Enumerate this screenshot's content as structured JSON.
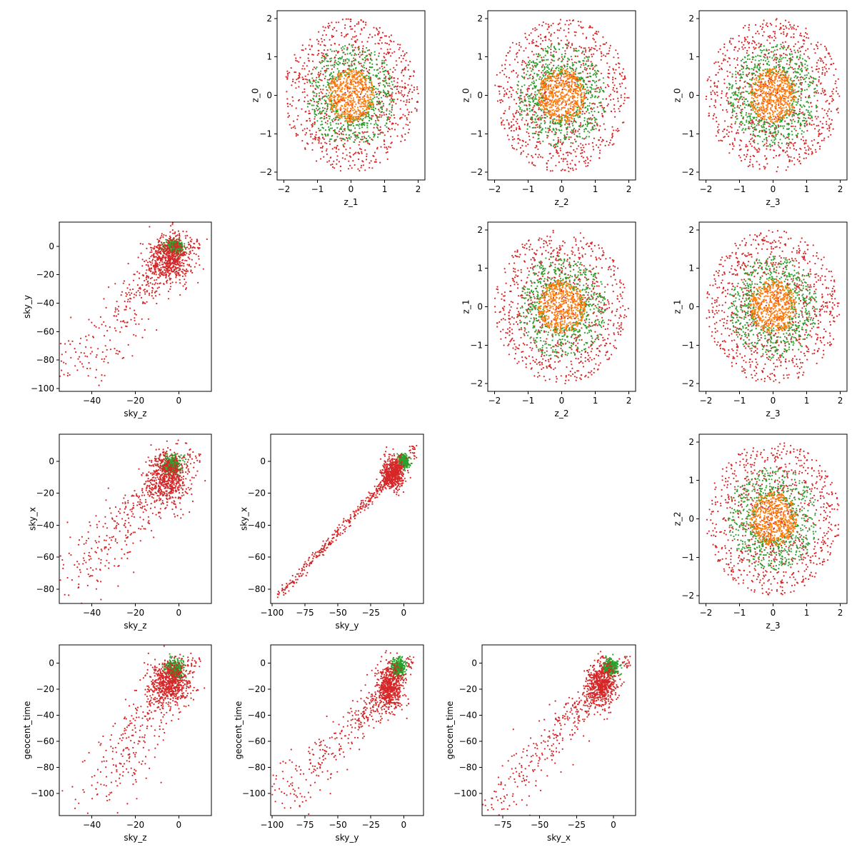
{
  "figure": {
    "type": "corner-scatter-matrix",
    "series_colors": [
      "#ff7f0e",
      "#2ca02c",
      "#d62728"
    ],
    "marker": "small dot"
  },
  "chart_data": [
    {
      "id": "z1_z0",
      "type": "scatter",
      "xlabel": "z_1",
      "ylabel": "z_0",
      "xlim": [
        -2.2,
        2.2
      ],
      "ylim": [
        -2.2,
        2.2
      ],
      "xticks": [
        -2,
        -1,
        0,
        1,
        2
      ],
      "xtick_labels": [
        "−2",
        "−1",
        "0",
        "1",
        "2"
      ],
      "yticks": [
        -2,
        -1,
        0,
        1,
        2
      ],
      "ytick_labels": [
        "−2",
        "−1",
        "0",
        "1",
        "2"
      ],
      "pattern": "radial",
      "series": [
        {
          "color": "#d62728",
          "radius": [
            0,
            2.0
          ],
          "points": 900
        },
        {
          "color": "#2ca02c",
          "radius": [
            0.55,
            1.35
          ],
          "points": 600
        },
        {
          "color": "#ff7f0e",
          "radius": [
            0,
            0.7
          ],
          "points": 550
        }
      ]
    },
    {
      "id": "z2_z0",
      "type": "scatter",
      "xlabel": "z_2",
      "ylabel": "z_0",
      "xlim": [
        -2.2,
        2.2
      ],
      "ylim": [
        -2.2,
        2.2
      ],
      "xticks": [
        -2,
        -1,
        0,
        1,
        2
      ],
      "xtick_labels": [
        "−2",
        "−1",
        "0",
        "1",
        "2"
      ],
      "yticks": [
        -2,
        -1,
        0,
        1,
        2
      ],
      "ytick_labels": [
        "−2",
        "−1",
        "0",
        "1",
        "2"
      ],
      "pattern": "radial",
      "series": [
        {
          "color": "#d62728",
          "radius": [
            0,
            2.0
          ],
          "points": 900
        },
        {
          "color": "#2ca02c",
          "radius": [
            0.55,
            1.35
          ],
          "points": 600
        },
        {
          "color": "#ff7f0e",
          "radius": [
            0,
            0.7
          ],
          "points": 550
        }
      ]
    },
    {
      "id": "z3_z0",
      "type": "scatter",
      "xlabel": "z_3",
      "ylabel": "z_0",
      "xlim": [
        -2.2,
        2.2
      ],
      "ylim": [
        -2.2,
        2.2
      ],
      "xticks": [
        -2,
        -1,
        0,
        1,
        2
      ],
      "xtick_labels": [
        "−2",
        "−1",
        "0",
        "1",
        "2"
      ],
      "yticks": [
        -2,
        -1,
        0,
        1,
        2
      ],
      "ytick_labels": [
        "−2",
        "−1",
        "0",
        "1",
        "2"
      ],
      "pattern": "radial",
      "series": [
        {
          "color": "#d62728",
          "radius": [
            0,
            2.0
          ],
          "points": 900
        },
        {
          "color": "#2ca02c",
          "radius": [
            0.55,
            1.35
          ],
          "points": 600
        },
        {
          "color": "#ff7f0e",
          "radius": [
            0,
            0.7
          ],
          "points": 550
        }
      ]
    },
    {
      "id": "skyz_skyy",
      "type": "scatter",
      "xlabel": "sky_z",
      "ylabel": "sky_y",
      "xlim": [
        -55,
        15
      ],
      "ylim": [
        -102,
        17
      ],
      "xticks": [
        -40,
        -20,
        0
      ],
      "xtick_labels": [
        "−40",
        "−20",
        "0"
      ],
      "yticks": [
        -100,
        -80,
        -60,
        -40,
        -20,
        0
      ],
      "ytick_labels": [
        "−100",
        "−80",
        "−60",
        "−40",
        "−20",
        "0"
      ],
      "pattern": "correlated",
      "series": [
        {
          "color": "#2ca02c",
          "center": [
            -2,
            0
          ],
          "spread": [
            4,
            4
          ],
          "points": 350
        },
        {
          "color": "#d62728",
          "anchors": [
            [
              10,
              6
            ],
            [
              -53,
              -95
            ]
          ],
          "cluster": [
            -4,
            -8
          ],
          "points": 900
        }
      ]
    },
    {
      "id": "z2_z1",
      "type": "scatter",
      "xlabel": "z_2",
      "ylabel": "z_1",
      "xlim": [
        -2.2,
        2.2
      ],
      "ylim": [
        -2.2,
        2.2
      ],
      "xticks": [
        -2,
        -1,
        0,
        1,
        2
      ],
      "xtick_labels": [
        "−2",
        "−1",
        "0",
        "1",
        "2"
      ],
      "yticks": [
        -2,
        -1,
        0,
        1,
        2
      ],
      "ytick_labels": [
        "−2",
        "−1",
        "0",
        "1",
        "2"
      ],
      "pattern": "radial",
      "series": [
        {
          "color": "#d62728",
          "radius": [
            0,
            2.0
          ],
          "points": 900
        },
        {
          "color": "#2ca02c",
          "radius": [
            0.55,
            1.35
          ],
          "points": 600
        },
        {
          "color": "#ff7f0e",
          "radius": [
            0,
            0.7
          ],
          "points": 550
        }
      ]
    },
    {
      "id": "z3_z1",
      "type": "scatter",
      "xlabel": "z_3",
      "ylabel": "z_1",
      "xlim": [
        -2.2,
        2.2
      ],
      "ylim": [
        -2.2,
        2.2
      ],
      "xticks": [
        -2,
        -1,
        0,
        1,
        2
      ],
      "xtick_labels": [
        "−2",
        "−1",
        "0",
        "1",
        "2"
      ],
      "yticks": [
        -2,
        -1,
        0,
        1,
        2
      ],
      "ytick_labels": [
        "−2",
        "−1",
        "0",
        "1",
        "2"
      ],
      "pattern": "radial",
      "series": [
        {
          "color": "#d62728",
          "radius": [
            0,
            2.0
          ],
          "points": 900
        },
        {
          "color": "#2ca02c",
          "radius": [
            0.55,
            1.35
          ],
          "points": 600
        },
        {
          "color": "#ff7f0e",
          "radius": [
            0,
            0.7
          ],
          "points": 550
        }
      ]
    },
    {
      "id": "skyz_skyx",
      "type": "scatter",
      "xlabel": "sky_z",
      "ylabel": "sky_x",
      "xlim": [
        -55,
        15
      ],
      "ylim": [
        -89,
        17
      ],
      "xticks": [
        -40,
        -20,
        0
      ],
      "xtick_labels": [
        "−40",
        "−20",
        "0"
      ],
      "yticks": [
        -80,
        -60,
        -40,
        -20,
        0
      ],
      "ytick_labels": [
        "−80",
        "−60",
        "−40",
        "−20",
        "0"
      ],
      "pattern": "correlated",
      "series": [
        {
          "color": "#2ca02c",
          "center": [
            -3,
            -2
          ],
          "spread": [
            4,
            6
          ],
          "points": 350
        },
        {
          "color": "#d62728",
          "anchors": [
            [
              10,
              8
            ],
            [
              -53,
              -84
            ]
          ],
          "cluster": [
            -5,
            -10
          ],
          "points": 900
        }
      ]
    },
    {
      "id": "skyy_skyx",
      "type": "scatter",
      "xlabel": "sky_y",
      "ylabel": "sky_x",
      "xlim": [
        -101,
        15
      ],
      "ylim": [
        -89,
        17
      ],
      "xticks": [
        -100,
        -75,
        -50,
        -25,
        0
      ],
      "xtick_labels": [
        "−100",
        "−75",
        "−50",
        "−25",
        "0"
      ],
      "yticks": [
        -80,
        -60,
        -40,
        -20,
        0
      ],
      "ytick_labels": [
        "−80",
        "−60",
        "−40",
        "−20",
        "0"
      ],
      "pattern": "linear",
      "series": [
        {
          "color": "#2ca02c",
          "center": [
            0,
            0
          ],
          "spread": [
            4,
            4
          ],
          "points": 350
        },
        {
          "color": "#d62728",
          "anchors": [
            [
              10,
              10
            ],
            [
              -96,
              -85
            ]
          ],
          "cluster": [
            -8,
            -8
          ],
          "points": 900
        }
      ]
    },
    {
      "id": "z3_z2",
      "type": "scatter",
      "xlabel": "z_3",
      "ylabel": "z_2",
      "xlim": [
        -2.2,
        2.2
      ],
      "ylim": [
        -2.2,
        2.2
      ],
      "xticks": [
        -2,
        -1,
        0,
        1,
        2
      ],
      "xtick_labels": [
        "−2",
        "−1",
        "0",
        "1",
        "2"
      ],
      "yticks": [
        -2,
        -1,
        0,
        1,
        2
      ],
      "ytick_labels": [
        "−2",
        "−1",
        "0",
        "1",
        "2"
      ],
      "pattern": "radial",
      "series": [
        {
          "color": "#d62728",
          "radius": [
            0,
            2.0
          ],
          "points": 900
        },
        {
          "color": "#2ca02c",
          "radius": [
            0.55,
            1.35
          ],
          "points": 600
        },
        {
          "color": "#ff7f0e",
          "radius": [
            0,
            0.7
          ],
          "points": 550
        }
      ]
    },
    {
      "id": "skyz_geocent",
      "type": "scatter",
      "xlabel": "sky_z",
      "ylabel": "geocent_time",
      "xlim": [
        -55,
        15
      ],
      "ylim": [
        -117,
        14
      ],
      "xticks": [
        -40,
        -20,
        0
      ],
      "xtick_labels": [
        "−40",
        "−20",
        "0"
      ],
      "yticks": [
        -100,
        -80,
        -60,
        -40,
        -20,
        0
      ],
      "ytick_labels": [
        "−100",
        "−80",
        "−60",
        "−40",
        "−20",
        "0"
      ],
      "pattern": "correlated",
      "series": [
        {
          "color": "#2ca02c",
          "center": [
            -2,
            -5
          ],
          "spread": [
            4,
            8
          ],
          "points": 350
        },
        {
          "color": "#d62728",
          "anchors": [
            [
              10,
              6
            ],
            [
              -40,
              -112
            ]
          ],
          "cluster": [
            -4,
            -15
          ],
          "points": 900
        }
      ]
    },
    {
      "id": "skyy_geocent",
      "type": "scatter",
      "xlabel": "sky_y",
      "ylabel": "geocent_time",
      "xlim": [
        -101,
        15
      ],
      "ylim": [
        -117,
        14
      ],
      "xticks": [
        -100,
        -75,
        -50,
        -25,
        0
      ],
      "xtick_labels": [
        "−100",
        "−75",
        "−50",
        "−25",
        "0"
      ],
      "yticks": [
        -100,
        -80,
        -60,
        -40,
        -20,
        0
      ],
      "ytick_labels": [
        "−100",
        "−80",
        "−60",
        "−40",
        "−20",
        "0"
      ],
      "pattern": "correlated",
      "series": [
        {
          "color": "#2ca02c",
          "center": [
            -4,
            -3
          ],
          "spread": [
            5,
            6
          ],
          "points": 350
        },
        {
          "color": "#d62728",
          "anchors": [
            [
              8,
              6
            ],
            [
              -97,
              -112
            ]
          ],
          "cluster": [
            -10,
            -18
          ],
          "points": 900
        }
      ]
    },
    {
      "id": "skyx_geocent",
      "type": "scatter",
      "xlabel": "sky_x",
      "ylabel": "geocent_time",
      "xlim": [
        -89,
        15
      ],
      "ylim": [
        -117,
        14
      ],
      "xticks": [
        -75,
        -50,
        -25,
        0
      ],
      "xtick_labels": [
        "−75",
        "−50",
        "−25",
        "0"
      ],
      "yticks": [
        -100,
        -80,
        -60,
        -40,
        -20,
        0
      ],
      "ytick_labels": [
        "−100",
        "−80",
        "−60",
        "−40",
        "−20",
        "0"
      ],
      "pattern": "correlated",
      "series": [
        {
          "color": "#2ca02c",
          "center": [
            -2,
            -3
          ],
          "spread": [
            5,
            6
          ],
          "points": 350
        },
        {
          "color": "#d62728",
          "anchors": [
            [
              12,
              6
            ],
            [
              -84,
              -112
            ]
          ],
          "cluster": [
            -8,
            -16
          ],
          "points": 900
        }
      ]
    }
  ]
}
